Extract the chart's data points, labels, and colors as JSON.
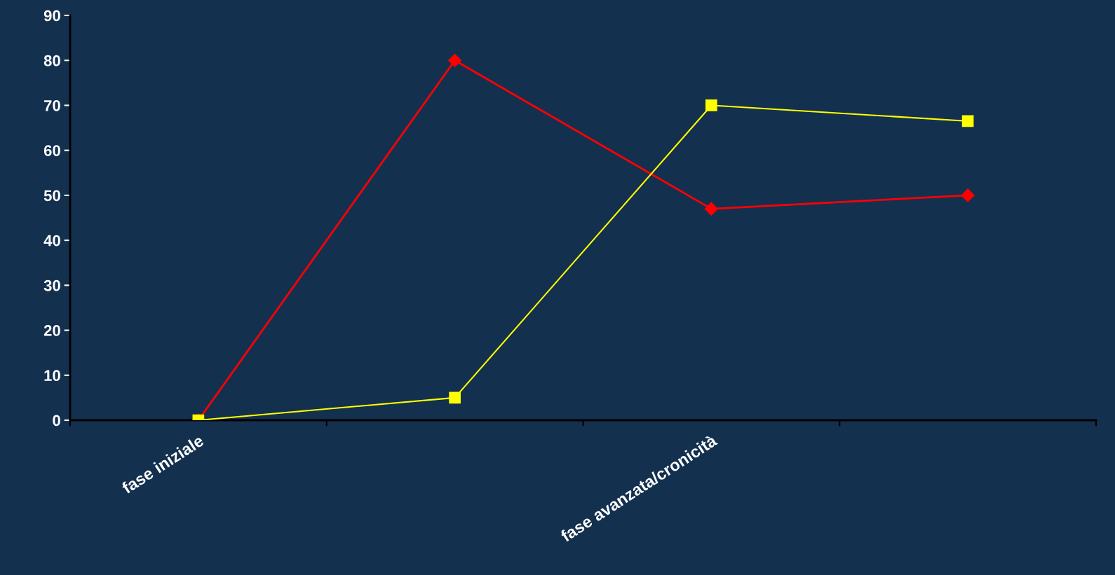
{
  "chart_data": {
    "type": "line",
    "categories": [
      "fase iniziale",
      null,
      "fase avanzata/cronicità",
      null
    ],
    "series": [
      {
        "color": "#ff0000",
        "marker": "diamond",
        "values": [
          0,
          80,
          47,
          50
        ]
      },
      {
        "color": "#ffff00",
        "marker": "square",
        "values": [
          0,
          5,
          70,
          66.5
        ]
      }
    ],
    "ylim": [
      0,
      90
    ],
    "yticks": [
      0,
      10,
      20,
      30,
      40,
      50,
      60,
      70,
      80,
      90
    ],
    "grid": false,
    "legend": false,
    "line_style": "solid"
  }
}
